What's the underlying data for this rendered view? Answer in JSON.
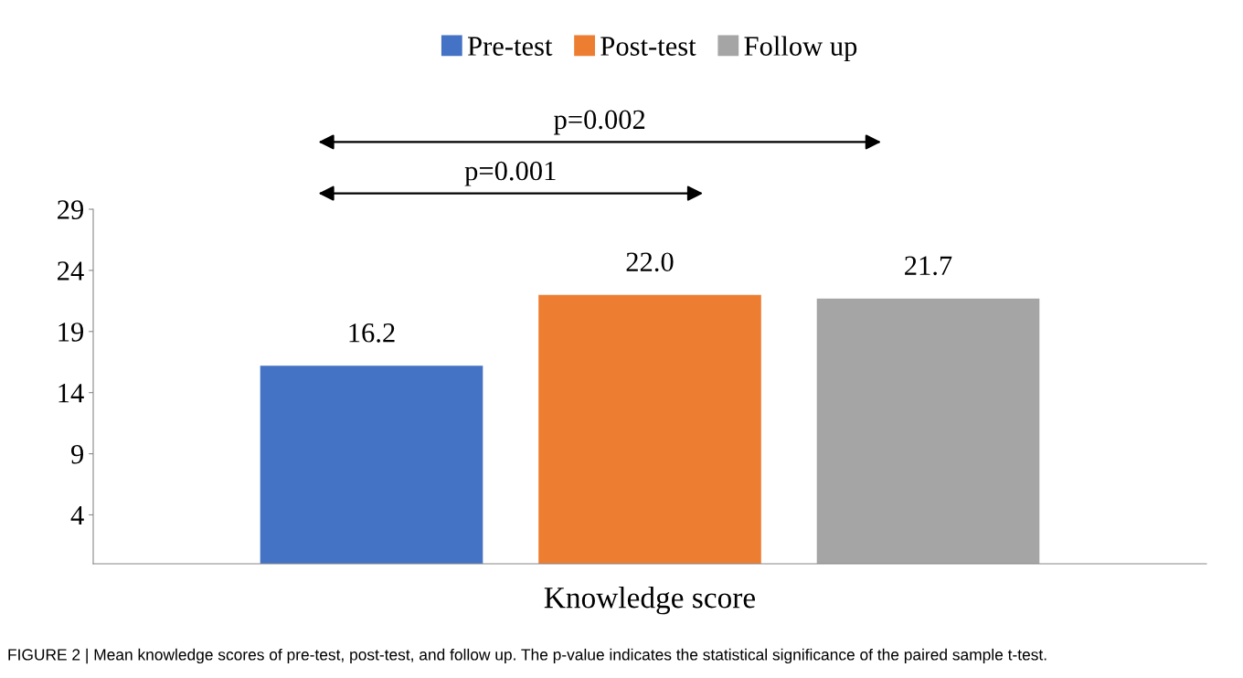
{
  "chart_data": {
    "type": "bar",
    "categories": [
      "Knowledge score"
    ],
    "series": [
      {
        "name": "Pre-test",
        "color": "#4472c4",
        "values": [
          16.2
        ]
      },
      {
        "name": "Post-test",
        "color": "#ed7d31",
        "values": [
          22.0
        ]
      },
      {
        "name": "Follow up",
        "color": "#a5a5a5",
        "values": [
          21.7
        ]
      }
    ],
    "value_labels": [
      "16.2",
      "22.0",
      "21.7"
    ],
    "ylim": [
      0,
      29
    ],
    "yticks": [
      4,
      9,
      14,
      19,
      24,
      29
    ],
    "grid": false,
    "legend": "top",
    "annotations": [
      "p=0.001",
      "p=0.002",
      "FIGURE 2 | Mean knowledge scores of pre-test, post-test, and follow up. The p-value indicates the statistical significance of the paired sample t-test."
    ]
  }
}
